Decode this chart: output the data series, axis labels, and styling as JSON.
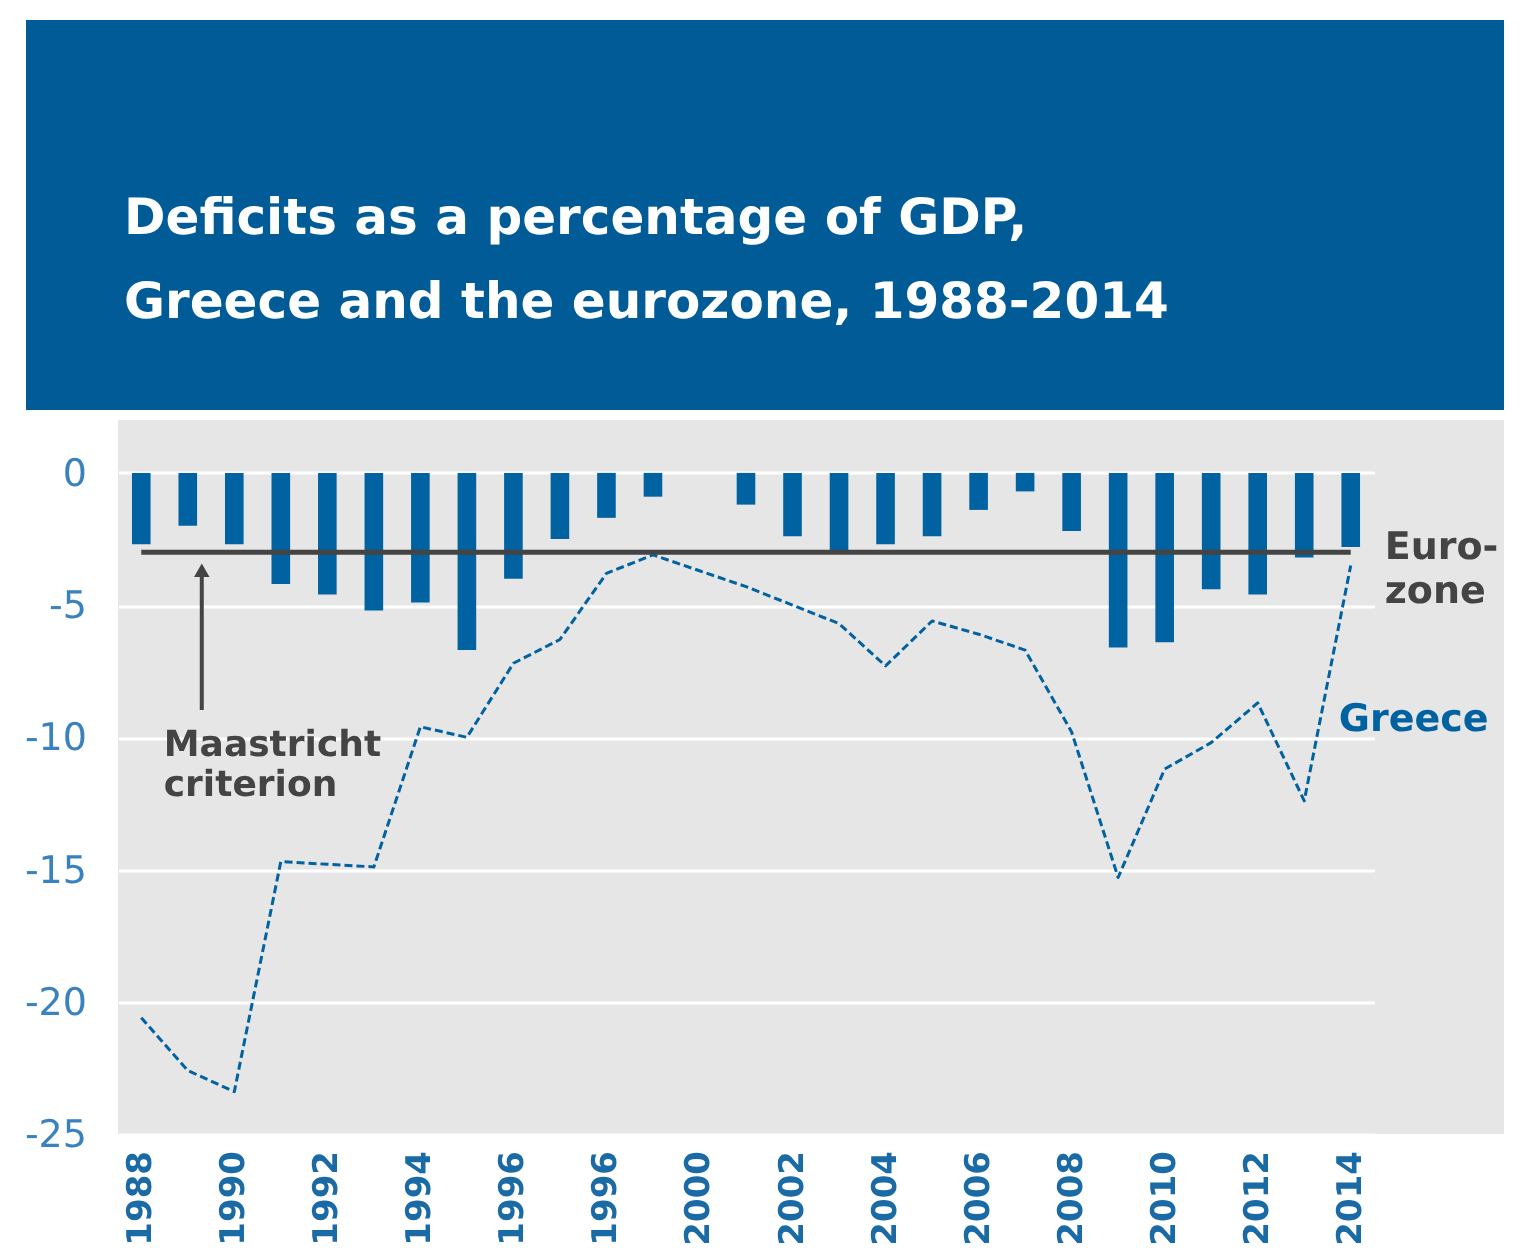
{
  "chart_data": {
    "type": "bar",
    "title": "Deficits as a percentage of GDP,\nGreece and the eurozone, 1988-2014",
    "categories": [
      "1988",
      null,
      "1990",
      null,
      "1992",
      null,
      "1994",
      null,
      "1996",
      null,
      "1996",
      null,
      "2000",
      null,
      "2002",
      null,
      "2004",
      null,
      "2006",
      null,
      "2008",
      null,
      "2010",
      null,
      "2012",
      null,
      "2014"
    ],
    "series": [
      {
        "name": "Euro-\nzone",
        "color": "#0062a0",
        "values": [
          -2.7,
          -2.0,
          -2.7,
          -4.2,
          -4.6,
          -5.2,
          -4.9,
          -6.7,
          -4.0,
          -2.5,
          -1.7,
          -0.9,
          null,
          -1.2,
          -2.4,
          -3.0,
          -2.7,
          -2.4,
          -1.4,
          -0.7,
          -2.2,
          -6.6,
          -6.4,
          -4.4,
          -4.6,
          -3.2,
          -2.8
        ]
      },
      {
        "name": "Greece",
        "type": "line",
        "color": "#0062a0",
        "line_style": "dashed",
        "values": [
          -20.6,
          -22.6,
          -23.4,
          -14.7,
          -14.8,
          -14.9,
          -9.6,
          -10.0,
          -7.2,
          -6.3,
          -3.8,
          -3.1,
          -3.7,
          -4.3,
          -5.0,
          -5.7,
          -7.3,
          -5.6,
          -6.1,
          -6.7,
          -9.8,
          -15.3,
          -11.2,
          -10.2,
          -8.7,
          -12.4,
          -3.5
        ]
      }
    ],
    "ylim": [
      -25,
      2
    ],
    "yticks": [
      0,
      -5,
      -10,
      -15,
      -20,
      -25
    ],
    "grid": "y",
    "legend": false,
    "ref_lines": [
      {
        "axis": "y",
        "value": -3,
        "label": "Maastricht\ncriterion",
        "color": "#444444"
      }
    ]
  }
}
